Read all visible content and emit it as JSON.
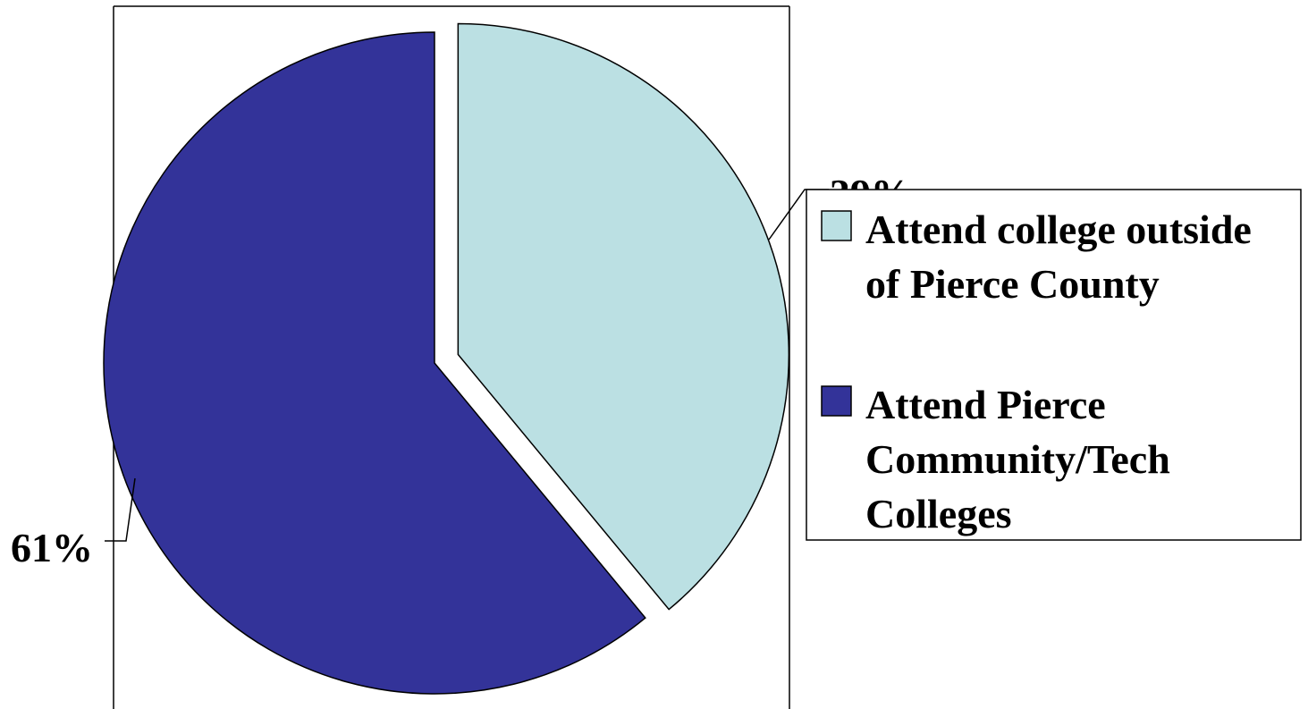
{
  "chart_data": {
    "type": "pie",
    "title": "",
    "slices": [
      {
        "label": "Attend college outside of Pierce County",
        "legend_lines": [
          "Attend college outside",
          "of Pierce County"
        ],
        "value": 39,
        "value_label": "39%",
        "color": "#BBE0E3",
        "exploded": true
      },
      {
        "label": "Attend Pierce Community/Tech Colleges",
        "legend_lines": [
          "Attend Pierce",
          "Community/Tech",
          "Colleges"
        ],
        "value": 61,
        "value_label": "61%",
        "color": "#333399",
        "exploded": false
      }
    ],
    "legend_position": "right",
    "data_labels": "outside with leader lines"
  }
}
